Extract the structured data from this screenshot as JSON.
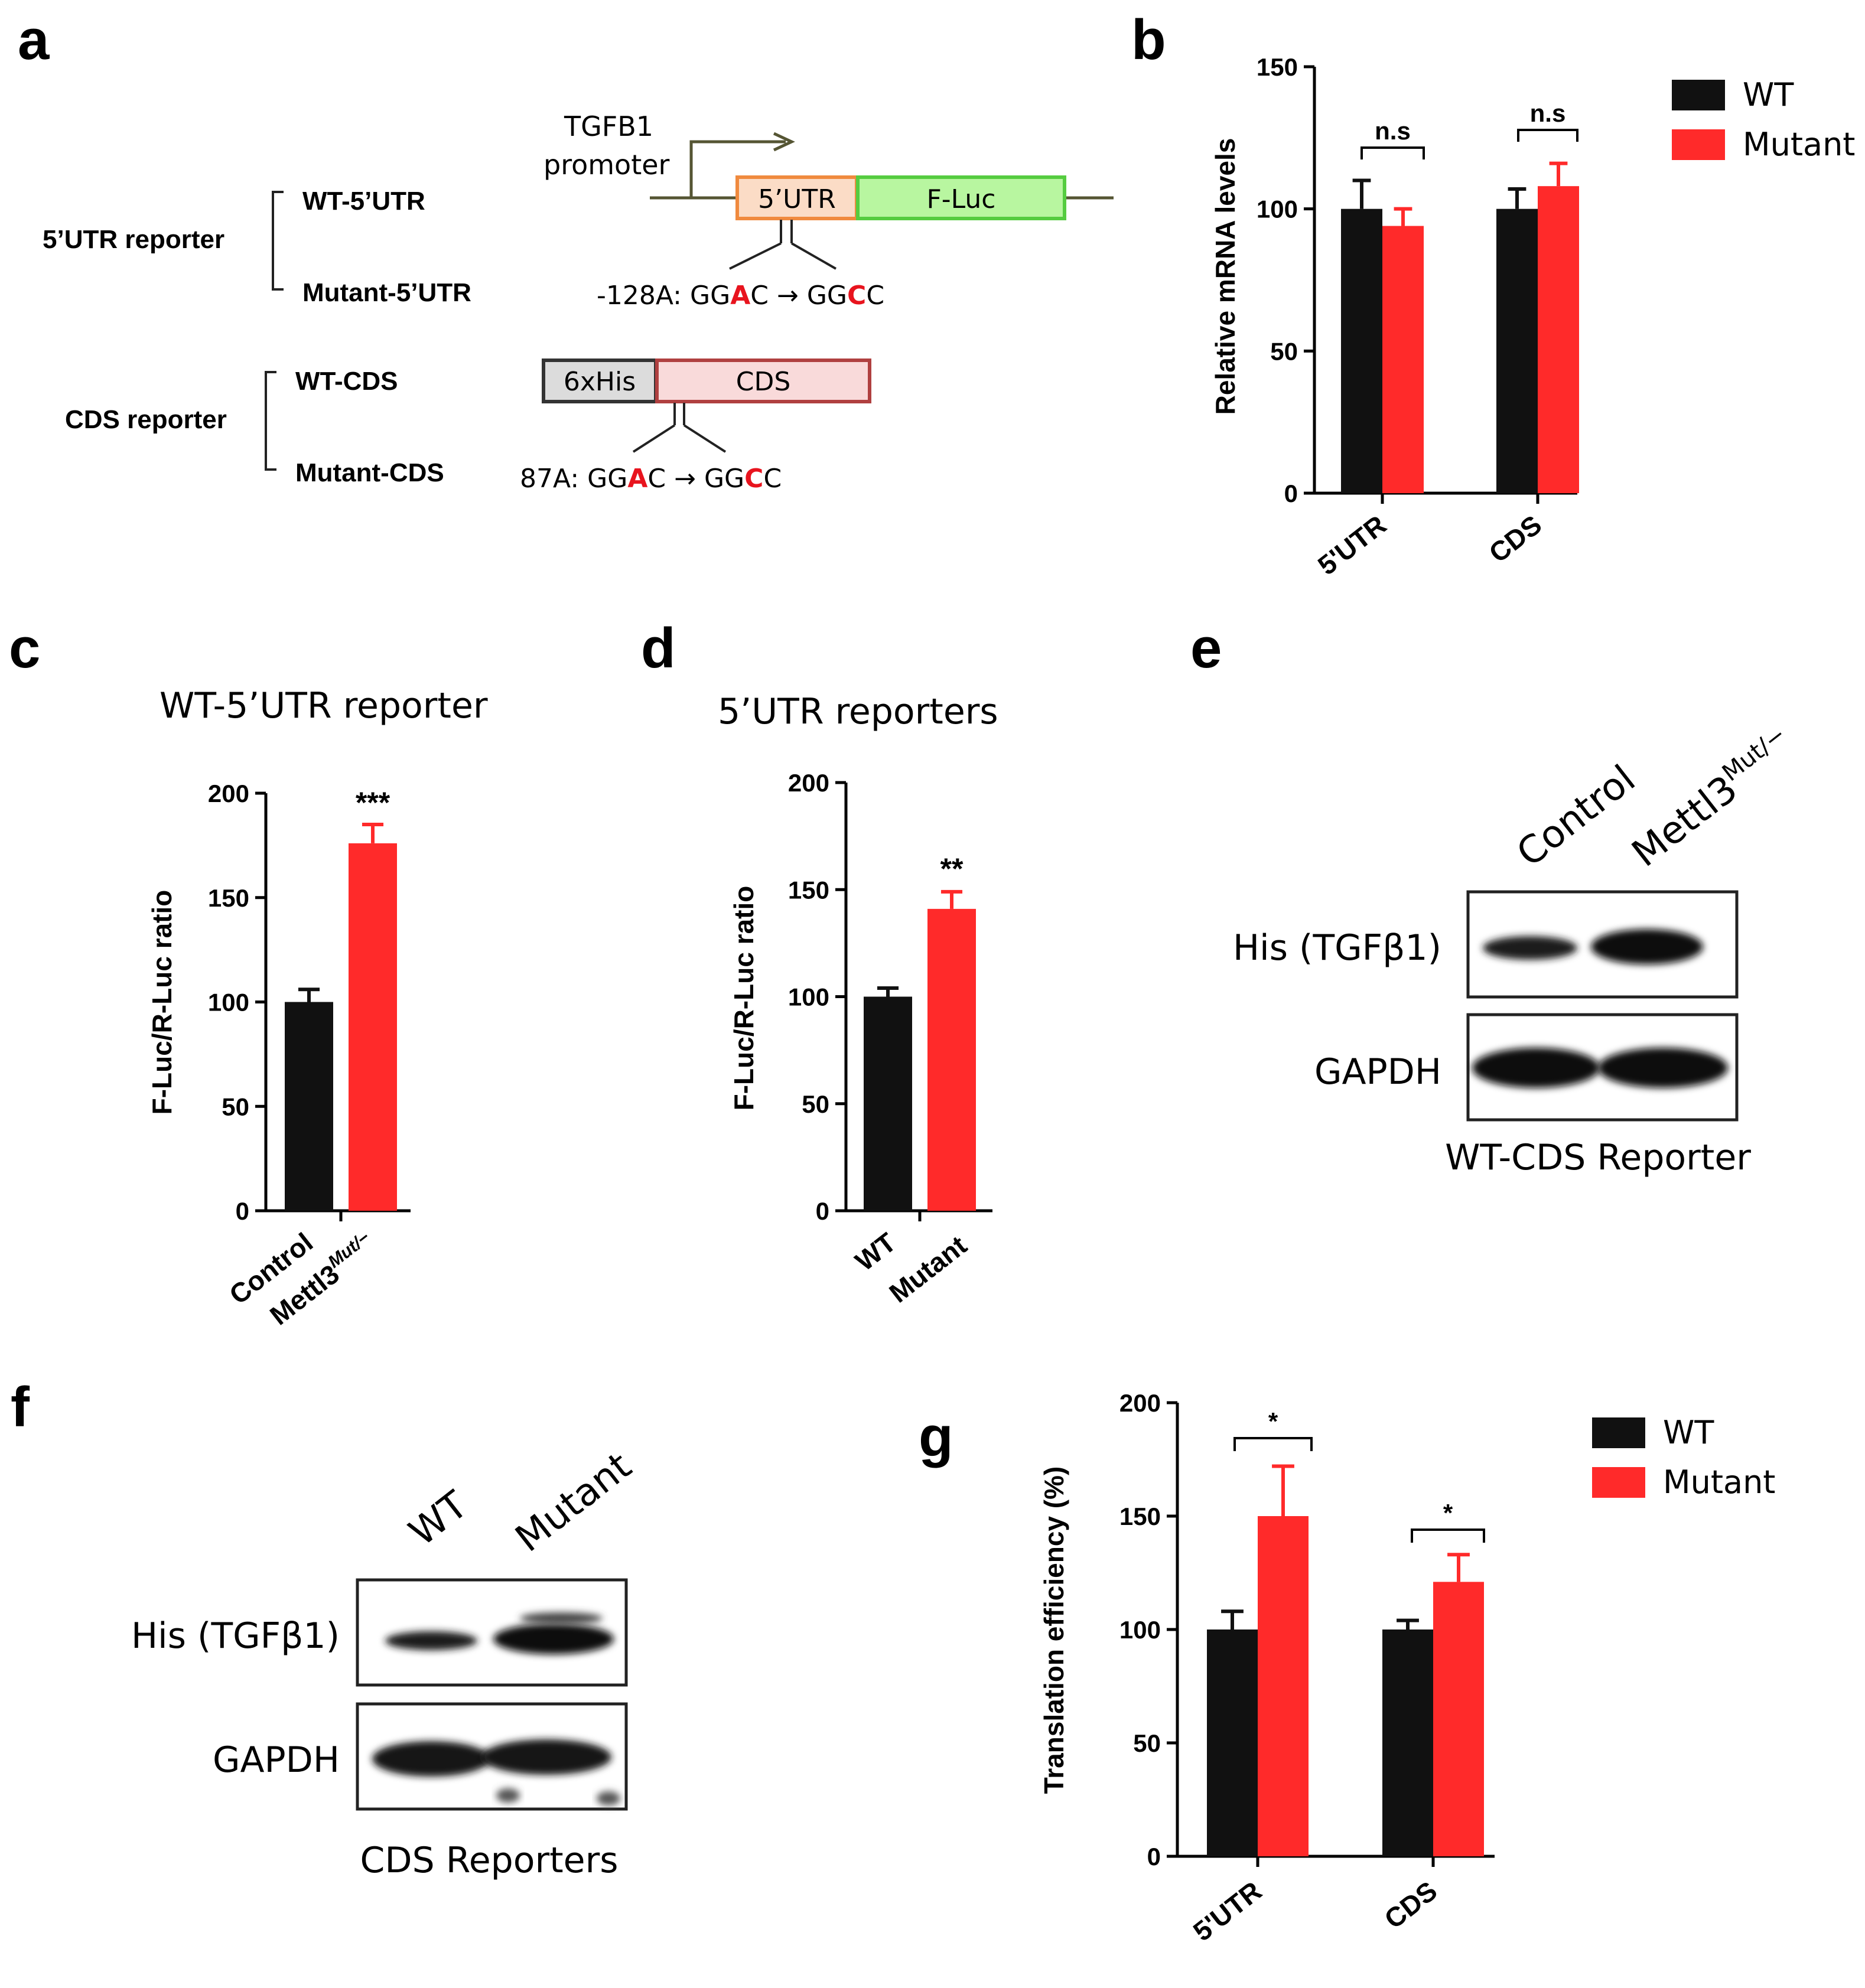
{
  "colors": {
    "wt": "#111111",
    "mutant": "#ff2a2a",
    "utr_fill": "#fbdcc6",
    "utr_stroke": "#f08a3e",
    "luc_fill": "#b8f6a0",
    "luc_stroke": "#55cc40",
    "his_fill": "#dcdcdc",
    "his_stroke": "#333333",
    "cds_fill": "#f9dada",
    "cds_stroke": "#b04040"
  },
  "panel_a": {
    "label": "a",
    "promoter_line1": "TGFB1",
    "promoter_line2": "promoter",
    "reporter5_title": "5’UTR reporter",
    "wt5": "WT-5’UTR",
    "mut5": "Mutant-5’UTR",
    "box_utr": "5’UTR",
    "box_luc": "F-Luc",
    "mut5_prefix": "-128A: GG",
    "mut5_from": "A",
    "mut5_mid": "C → GG",
    "mut5_to": "C",
    "mut5_end": "C",
    "reporterC_title": "CDS reporter",
    "wtcds": "WT-CDS",
    "mutcds": "Mutant-CDS",
    "box_his": "6xHis",
    "box_cds": "CDS",
    "mutc_prefix": "87A: GG",
    "mutc_from": "A",
    "mutc_mid": "C → GG",
    "mutc_to": "C",
    "mutc_end": "C"
  },
  "panel_b": {
    "label": "b",
    "significance": [
      "n.s",
      "n.s"
    ],
    "legend": [
      "WT",
      "Mutant"
    ],
    "chart_data": {
      "type": "bar",
      "ylabel": "Relative mRNA levels",
      "ylim": [
        0,
        150
      ],
      "yticks": [
        "0",
        "50",
        "100",
        "150"
      ],
      "categories": [
        "5'UTR",
        "CDS"
      ],
      "series": [
        {
          "name": "WT",
          "values": [
            100,
            100
          ],
          "errors": [
            10,
            7
          ]
        },
        {
          "name": "Mutant",
          "values": [
            94,
            108
          ],
          "errors": [
            6,
            8
          ]
        }
      ],
      "legend_position": "top-right"
    }
  },
  "panel_c": {
    "label": "c",
    "title": "WT-5’UTR reporter",
    "significance": "***",
    "xlab_control": "Control",
    "xlab_mettl_base": "Mettl3",
    "xlab_mettl_sup": "Mut/−",
    "chart_data": {
      "type": "bar",
      "ylabel": "F-Luc/R-Luc ratio",
      "ylim": [
        0,
        200
      ],
      "yticks": [
        "0",
        "50",
        "100",
        "150",
        "200"
      ],
      "categories": [
        "Control",
        "Mettl3Mut/−"
      ],
      "values": [
        100,
        176
      ],
      "errors": [
        6,
        9
      ]
    }
  },
  "panel_d": {
    "label": "d",
    "title": "5’UTR reporters",
    "significance": "**",
    "chart_data": {
      "type": "bar",
      "ylabel": "F-Luc/R-Luc ratio",
      "ylim": [
        0,
        200
      ],
      "yticks": [
        "0",
        "50",
        "100",
        "150",
        "200"
      ],
      "categories": [
        "WT",
        "Mutant"
      ],
      "values": [
        100,
        141
      ],
      "errors": [
        4,
        8
      ]
    }
  },
  "panel_e": {
    "label": "e",
    "lane1": "Control",
    "lane2_base": "Mettl3",
    "lane2_sup": "Mut/−",
    "row1": "His (TGFβ1)",
    "row2": "GAPDH",
    "caption": "WT-CDS Reporter"
  },
  "panel_f": {
    "label": "f",
    "lane1": "WT",
    "lane2": "Mutant",
    "row1": "His (TGFβ1)",
    "row2": "GAPDH",
    "caption": "CDS Reporters"
  },
  "panel_g": {
    "label": "g",
    "significance": [
      "*",
      "*"
    ],
    "legend": [
      "WT",
      "Mutant"
    ],
    "chart_data": {
      "type": "bar",
      "ylabel": "Translation efficiency (%)",
      "ylim": [
        0,
        200
      ],
      "yticks": [
        "0",
        "50",
        "100",
        "150",
        "200"
      ],
      "categories": [
        "5'UTR",
        "CDS"
      ],
      "series": [
        {
          "name": "WT",
          "values": [
            100,
            100
          ],
          "errors": [
            8,
            4
          ]
        },
        {
          "name": "Mutant",
          "values": [
            150,
            121
          ],
          "errors": [
            22,
            12
          ]
        }
      ],
      "legend_position": "top-right"
    }
  }
}
